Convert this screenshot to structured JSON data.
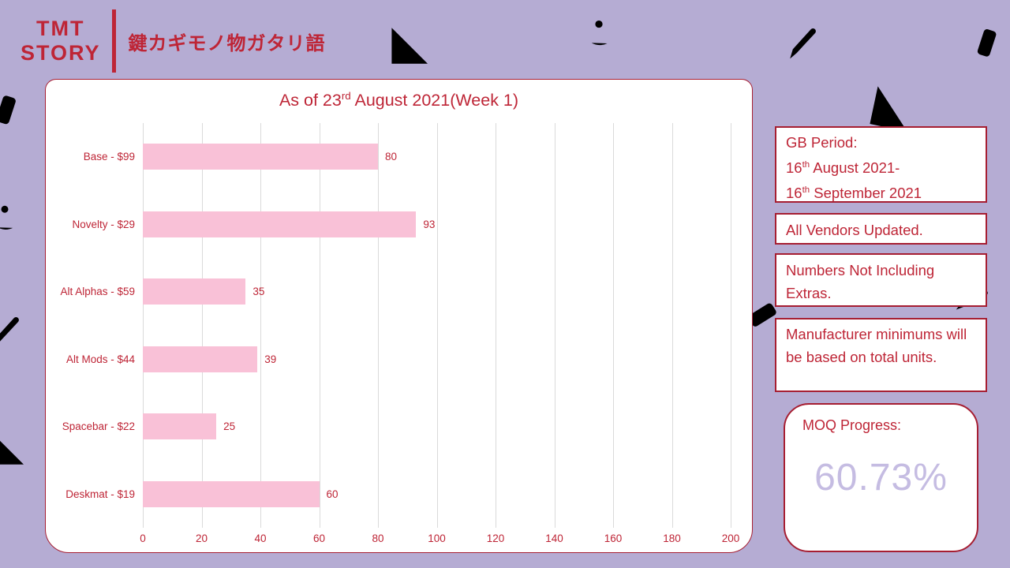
{
  "palette": {
    "background": "#B5ACD3",
    "accent_red": "#BE2536",
    "border_red": "#A61E32",
    "bar_pink": "#F9C1D7",
    "moq_value_color": "#C5BCE2",
    "gridline_color": "#DADADA"
  },
  "logo": {
    "brand_line1": "TMT",
    "brand_line2": "STORY",
    "japanese": "鍵カギモノ物ガタリ語"
  },
  "chart_data": {
    "type": "bar",
    "orientation": "horizontal",
    "title_text": "As of 23rd August 2021(Week 1)",
    "title": {
      "pre": "As of 23",
      "ordinal": "rd",
      "post": " August 2021(Week 1)"
    },
    "categories": [
      "Base - $99",
      "Novelty - $29",
      "Alt Alphas - $59",
      "Alt Mods - $44",
      "Spacebar - $22",
      "Deskmat - $19"
    ],
    "values": [
      80,
      93,
      35,
      39,
      25,
      60
    ],
    "xlim": [
      0,
      200
    ],
    "x_ticks": [
      0,
      20,
      40,
      60,
      80,
      100,
      120,
      140,
      160,
      180,
      200
    ],
    "bar_color": "#F9C1D7",
    "grid": true,
    "value_labels_shown": true,
    "legend": "none"
  },
  "info_panel": {
    "gb_period": {
      "label": "GB Period:",
      "start": {
        "day": "16",
        "ordinal": "th",
        "rest": " August 2021-"
      },
      "end": {
        "day": "16",
        "ordinal": "th",
        "rest": " September 2021"
      }
    },
    "vendors_note": "All Vendors Updated.",
    "extras_note": "Numbers Not Including Extras.",
    "minimums_note": "Manufacturer minimums will be based on total units.",
    "moq": {
      "label": "MOQ Progress:",
      "value": "60.73%"
    }
  }
}
